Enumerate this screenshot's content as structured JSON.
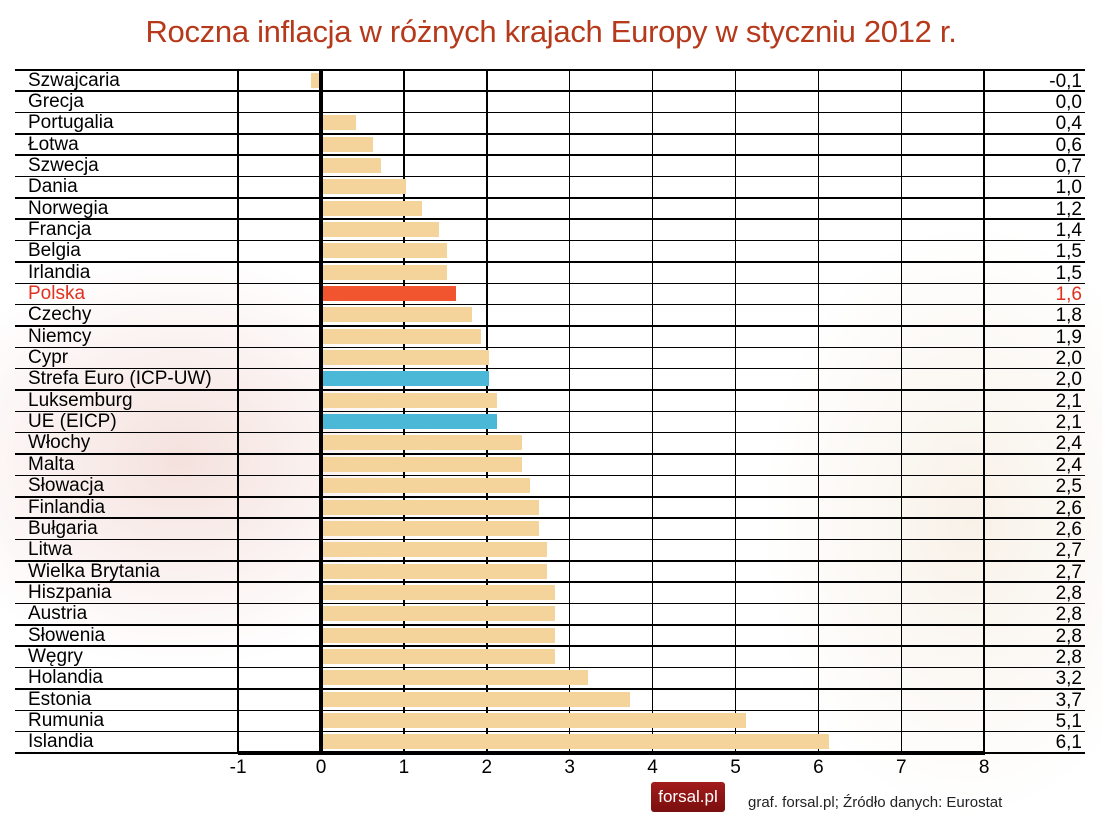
{
  "title": "Roczna inflacja w różnych krajach Europy w styczniu 2012 r.",
  "footer": {
    "logo_text": "forsal.pl",
    "source": "graf. forsal.pl; Źródło danych: Eurostat"
  },
  "colors": {
    "title": "#b5391a",
    "default_bar": "#f4d49b",
    "highlight_bar": "#f0552f",
    "aggregate_bar": "#4bb8d8",
    "highlight_text": "#e0301e"
  },
  "chart_data": {
    "type": "bar",
    "orientation": "horizontal",
    "title": "Roczna inflacja w różnych krajach Europy w styczniu 2012 r.",
    "xlabel": "",
    "ylabel": "",
    "xlim": [
      -1,
      8
    ],
    "x_ticks": [
      "-1",
      "0",
      "1",
      "2",
      "3",
      "4",
      "5",
      "6",
      "7",
      "8"
    ],
    "grid": true,
    "legend": null,
    "categories": [
      "Szwajcaria",
      "Grecja",
      "Portugalia",
      "Łotwa",
      "Szwecja",
      "Dania",
      "Norwegia",
      "Francja",
      "Belgia",
      "Irlandia",
      "Polska",
      "Czechy",
      "Niemcy",
      "Cypr",
      "Strefa Euro (ICP-UW)",
      "Luksemburg",
      "UE (EICP)",
      "Włochy",
      "Malta",
      "Słowacja",
      "Finlandia",
      "Bułgaria",
      "Litwa",
      "Wielka Brytania",
      "Hiszpania",
      "Austria",
      "Słowenia",
      "Węgry",
      "Holandia",
      "Estonia",
      "Rumunia",
      "Islandia"
    ],
    "values": [
      -0.1,
      0.0,
      0.4,
      0.6,
      0.7,
      1.0,
      1.2,
      1.4,
      1.5,
      1.5,
      1.6,
      1.8,
      1.9,
      2.0,
      2.0,
      2.1,
      2.1,
      2.4,
      2.4,
      2.5,
      2.6,
      2.6,
      2.7,
      2.7,
      2.8,
      2.8,
      2.8,
      2.8,
      3.2,
      3.7,
      5.1,
      6.1
    ],
    "value_labels": [
      "-0,1",
      "0,0",
      "0,4",
      "0,6",
      "0,7",
      "1,0",
      "1,2",
      "1,4",
      "1,5",
      "1,5",
      "1,6",
      "1,8",
      "1,9",
      "2,0",
      "2,0",
      "2,1",
      "2,1",
      "2,4",
      "2,4",
      "2,5",
      "2,6",
      "2,6",
      "2,7",
      "2,7",
      "2,8",
      "2,8",
      "2,8",
      "2,8",
      "3,2",
      "3,7",
      "5,1",
      "6,1"
    ],
    "highlight": {
      "Polska": "highlight",
      "Strefa Euro (ICP-UW)": "aggregate",
      "UE (EICP)": "aggregate"
    },
    "source": "Eurostat"
  }
}
